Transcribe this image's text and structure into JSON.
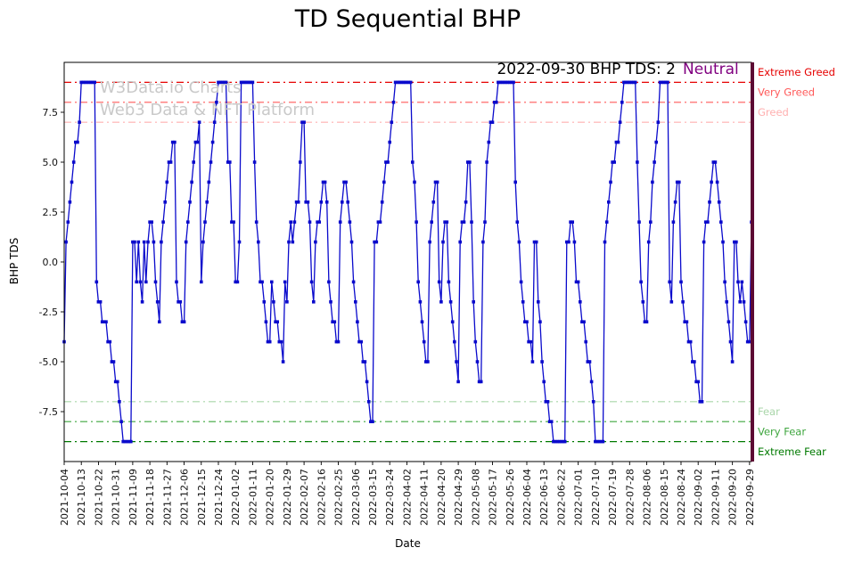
{
  "watermark": {
    "line1": "W3Data.io Charts",
    "line2": "Web3 Data & NFT Platform",
    "color": "#c9c9c9"
  },
  "annotations": {
    "summary": "2022-09-30 BHP TDS: 2",
    "sentiment": "Neutral",
    "sentiment_color": "#800080"
  },
  "chart_data": {
    "type": "line",
    "title": "TD Sequential BHP",
    "xlabel": "Date",
    "ylabel": "BHP TDS",
    "ylim": [
      -10,
      10
    ],
    "grid": false,
    "legend": "none",
    "x_tick_interval": 9,
    "x_ticks": [
      "2021-10-04",
      "2021-10-13",
      "2021-10-22",
      "2021-10-31",
      "2021-11-09",
      "2021-11-18",
      "2021-11-27",
      "2021-12-06",
      "2021-12-15",
      "2021-12-24",
      "2022-01-02",
      "2022-01-11",
      "2022-01-20",
      "2022-01-29",
      "2022-02-07",
      "2022-02-16",
      "2022-02-25",
      "2022-03-06",
      "2022-03-15",
      "2022-03-24",
      "2022-04-02",
      "2022-04-11",
      "2022-04-20",
      "2022-04-29",
      "2022-05-08",
      "2022-05-17",
      "2022-05-26",
      "2022-06-04",
      "2022-06-13",
      "2022-06-22",
      "2022-07-01",
      "2022-07-10",
      "2022-07-19",
      "2022-07-28",
      "2022-08-06",
      "2022-08-15",
      "2022-08-24",
      "2022-09-02",
      "2022-09-11",
      "2022-09-20",
      "2022-09-29"
    ],
    "y_ticks": [
      {
        "label": "-7.5",
        "value": -7.5
      },
      {
        "label": "-5.0",
        "value": -5
      },
      {
        "label": "-2.5",
        "value": -2.5
      },
      {
        "label": "0.0",
        "value": 0
      },
      {
        "label": "2.5",
        "value": 2.5
      },
      {
        "label": "5.0",
        "value": 5
      },
      {
        "label": "7.5",
        "value": 7.5
      }
    ],
    "series": [
      {
        "name": "BHP TDS",
        "color": "#0a0acc",
        "marker": "square",
        "start_date": "2021-10-04",
        "end_date": "2022-09-30",
        "values": [
          -4,
          1,
          2,
          3,
          4,
          5,
          6,
          6,
          7,
          9,
          9,
          9,
          9,
          9,
          9,
          9,
          9,
          -1,
          -2,
          -2,
          -3,
          -3,
          -3,
          -4,
          -4,
          -5,
          -5,
          -6,
          -6,
          -7,
          -8,
          -9,
          -9,
          -9,
          -9,
          -9,
          1,
          1,
          -1,
          1,
          -1,
          -2,
          1,
          -1,
          1,
          2,
          2,
          1,
          -1,
          -2,
          -3,
          1,
          2,
          3,
          4,
          5,
          5,
          6,
          6,
          -1,
          -2,
          -2,
          -3,
          -3,
          1,
          2,
          3,
          4,
          5,
          6,
          6,
          7,
          -1,
          1,
          2,
          3,
          4,
          5,
          6,
          7,
          8,
          9,
          9,
          9,
          9,
          9,
          5,
          5,
          2,
          2,
          -1,
          -1,
          1,
          9,
          9,
          9,
          9,
          9,
          9,
          9,
          5,
          2,
          1,
          -1,
          -1,
          -2,
          -3,
          -4,
          -4,
          -1,
          -2,
          -3,
          -3,
          -4,
          -4,
          -5,
          -1,
          -2,
          1,
          2,
          1,
          2,
          3,
          3,
          5,
          7,
          7,
          3,
          3,
          2,
          -1,
          -2,
          1,
          2,
          2,
          3,
          4,
          4,
          3,
          -1,
          -2,
          -3,
          -3,
          -4,
          -4,
          2,
          3,
          4,
          4,
          3,
          2,
          1,
          -1,
          -2,
          -3,
          -4,
          -4,
          -5,
          -5,
          -6,
          -7,
          -8,
          -8,
          1,
          1,
          2,
          2,
          3,
          4,
          5,
          5,
          6,
          7,
          8,
          9,
          9,
          9,
          9,
          9,
          9,
          9,
          9,
          9,
          5,
          4,
          2,
          -1,
          -2,
          -3,
          -4,
          -5,
          -5,
          1,
          2,
          3,
          4,
          4,
          -1,
          -2,
          1,
          2,
          2,
          -1,
          -2,
          -3,
          -4,
          -5,
          -6,
          1,
          2,
          2,
          3,
          5,
          5,
          2,
          -2,
          -4,
          -5,
          -6,
          -6,
          1,
          2,
          5,
          6,
          7,
          7,
          8,
          8,
          9,
          9,
          9,
          9,
          9,
          9,
          9,
          9,
          9,
          4,
          2,
          1,
          -1,
          -2,
          -3,
          -3,
          -4,
          -4,
          -5,
          1,
          1,
          -2,
          -3,
          -5,
          -6,
          -7,
          -7,
          -8,
          -8,
          -9,
          -9,
          -9,
          -9,
          -9,
          -9,
          -9,
          1,
          1,
          2,
          2,
          1,
          -1,
          -1,
          -2,
          -3,
          -3,
          -4,
          -5,
          -5,
          -6,
          -7,
          -9,
          -9,
          -9,
          -9,
          -9,
          1,
          2,
          3,
          4,
          5,
          5,
          6,
          6,
          7,
          8,
          9,
          9,
          9,
          9,
          9,
          9,
          9,
          5,
          2,
          -1,
          -2,
          -3,
          -3,
          1,
          2,
          4,
          5,
          6,
          7,
          9,
          9,
          9,
          9,
          9,
          -1,
          -2,
          2,
          3,
          4,
          4,
          -1,
          -2,
          -3,
          -3,
          -4,
          -4,
          -5,
          -5,
          -6,
          -6,
          -7,
          -7,
          1,
          2,
          2,
          3,
          4,
          5,
          5,
          4,
          3,
          2,
          1,
          -1,
          -2,
          -3,
          -4,
          -5,
          1,
          1,
          -1,
          -2,
          -1,
          -2,
          -3,
          -4,
          -4,
          2
        ]
      }
    ],
    "ref_lines": [
      {
        "label": "Extreme Greed",
        "value": 9,
        "color": "#e60000"
      },
      {
        "label": "Very Greed",
        "value": 8,
        "color": "#ff5a5a"
      },
      {
        "label": "Greed",
        "value": 7,
        "color": "#ffb0b0"
      },
      {
        "label": "Fear",
        "value": -7,
        "color": "#a9d6a9"
      },
      {
        "label": "Very Fear",
        "value": -8,
        "color": "#3fa63f"
      },
      {
        "label": "Extreme Fear",
        "value": -9,
        "color": "#007a00"
      }
    ],
    "current_marker": {
      "color": "#5c0a33"
    }
  }
}
